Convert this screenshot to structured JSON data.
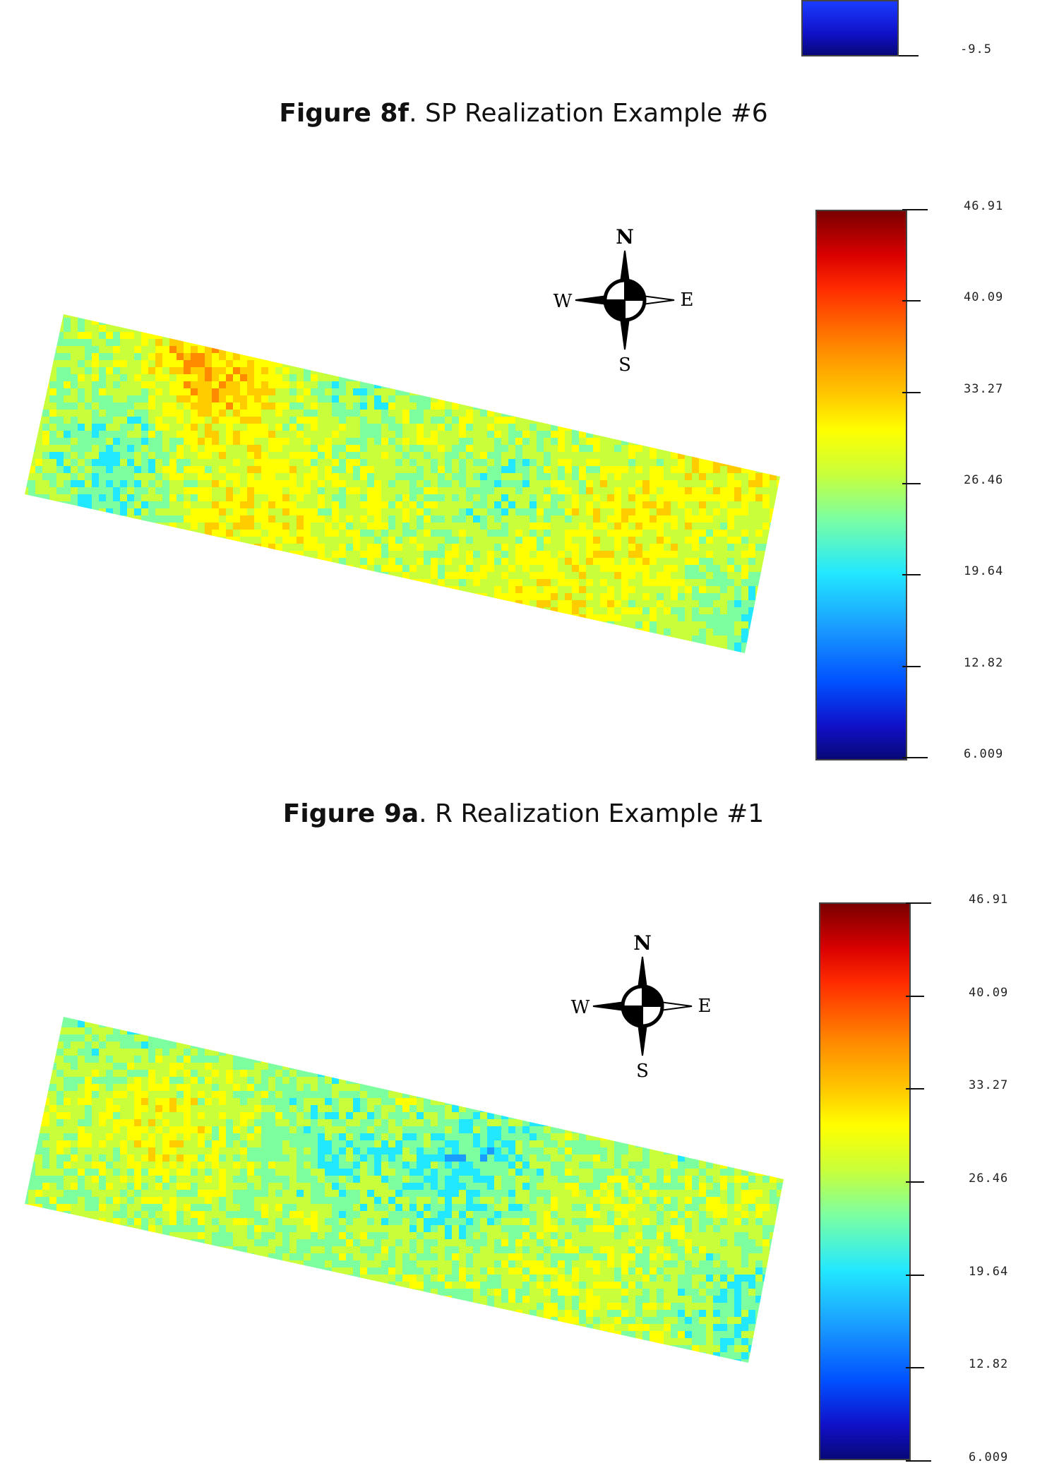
{
  "top_fragment": {
    "scale_bottom_label": "-9.5"
  },
  "figure_8f": {
    "label": "Figure 8f",
    "caption": ". SP Realization Example #6"
  },
  "figure_9a": {
    "label": "Figure 9a",
    "caption": ". R Realization Example #1",
    "scale_labels": [
      "46.91",
      "40.09",
      "33.27",
      "26.46",
      "19.64",
      "12.82",
      "6.009"
    ],
    "compass": {
      "n": "N",
      "e": "E",
      "s": "S",
      "w": "W"
    }
  },
  "figure_9b": {
    "scale_labels": [
      "46.91",
      "40.09",
      "33.27",
      "26.46",
      "19.64",
      "12.82",
      "6.009"
    ],
    "compass": {
      "n": "N",
      "e": "E",
      "s": "S",
      "w": "W"
    }
  },
  "colors": {
    "colormap": [
      "#080878",
      "#1010c8",
      "#0050ff",
      "#1a9cff",
      "#22e8ff",
      "#7dffa0",
      "#c8ff3a",
      "#ffff00",
      "#ffcc00",
      "#ff8a00",
      "#ff2a00",
      "#d90000",
      "#7a0000"
    ]
  }
}
